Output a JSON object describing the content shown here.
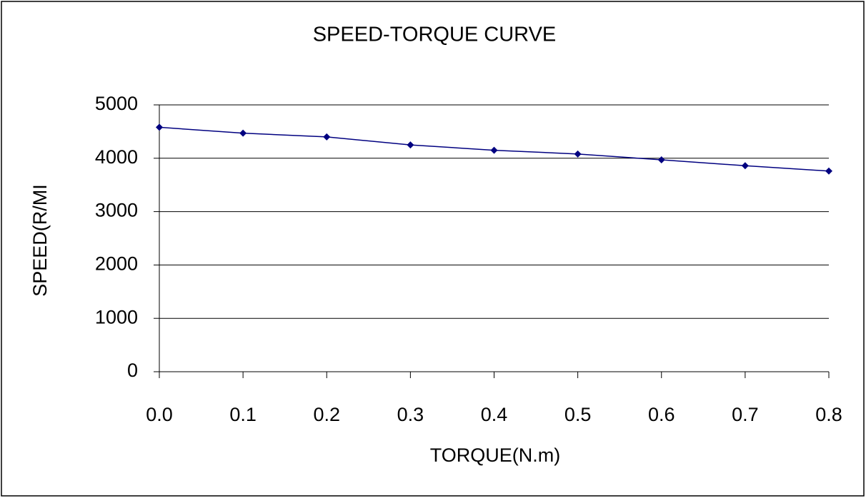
{
  "chart_data": {
    "type": "line",
    "title": "SPEED-TORQUE CURVE",
    "x_label": "TORQUE(N.m)",
    "y_label": "SPEED(R/MI",
    "x": [
      0,
      0.1,
      0.2,
      0.3,
      0.4,
      0.5,
      0.6,
      0.7,
      0.8
    ],
    "series": [
      {
        "name": "SPEED",
        "color": "#000080",
        "values": [
          4580,
          4470,
          4400,
          4250,
          4150,
          4080,
          3970,
          3860,
          3760
        ]
      }
    ],
    "xlim": [
      0,
      0.8
    ],
    "xticks": [
      {
        "value": 0,
        "label": "0.0"
      },
      0.1,
      0.2,
      0.3,
      0.4,
      0.5,
      0.6,
      0.7,
      0.8
    ],
    "ylim": [
      0,
      5000
    ],
    "yticks": [
      0,
      1000,
      2000,
      3000,
      4000,
      5000
    ],
    "grid": true,
    "marker": "diamond"
  }
}
